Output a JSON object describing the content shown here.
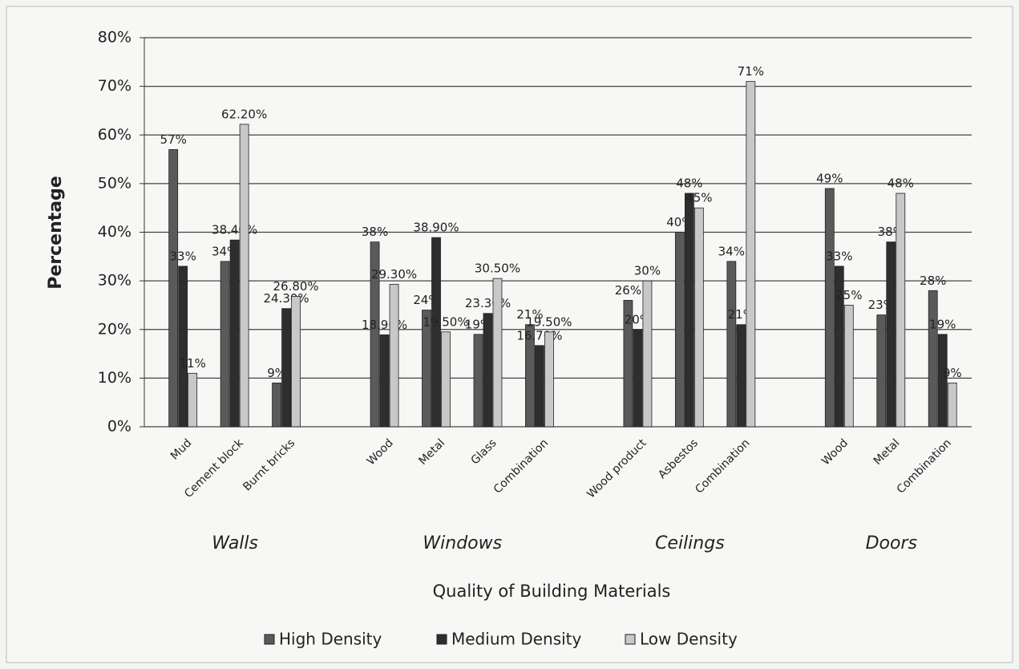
{
  "chart_data": {
    "type": "bar",
    "x_label": "Quality of Building Materials",
    "y_label": "Percentage",
    "categories": [
      "Mud",
      "Cement block",
      "Burnt bricks",
      "Wood",
      "Metal",
      "Glass",
      "Combination",
      "Wood product",
      "Asbestos",
      "Combination",
      "Wood",
      "Metal",
      "Combination"
    ],
    "category_groups": [
      "Walls",
      "Walls",
      "Walls",
      "Windows",
      "Windows",
      "Windows",
      "Windows",
      "Ceilings",
      "Ceilings",
      "Ceilings",
      "Doors",
      "Doors",
      "Doors"
    ],
    "series": [
      {
        "name": "High Density",
        "color": "#5a5a5a",
        "values": [
          57,
          34,
          9,
          38,
          24,
          19,
          21,
          26,
          40,
          34,
          49,
          23,
          28
        ],
        "value_labels": [
          "57%",
          "34%",
          "9%",
          "38%",
          "24%",
          "19%",
          "21%",
          "26%",
          "40%",
          "34%",
          "49%",
          "23%",
          "28%"
        ]
      },
      {
        "name": "Medium Density",
        "color": "#2e2e2e",
        "values": [
          33,
          38.4,
          24.3,
          18.9,
          38.9,
          23.3,
          16.7,
          20,
          48,
          21,
          33,
          38,
          19
        ],
        "value_labels": [
          "33%",
          "38.40%",
          "24.30%",
          "18.90%",
          "38.90%",
          "23.30%",
          "16.70%",
          "20%",
          "48%",
          "21%",
          "33%",
          "38%",
          "19%"
        ]
      },
      {
        "name": "Low Density",
        "color": "#c8c8c8",
        "values": [
          11,
          62.2,
          26.8,
          29.3,
          19.5,
          30.5,
          19.5,
          30,
          45,
          71,
          25,
          48,
          9
        ],
        "value_labels": [
          "11%",
          "62.20%",
          "26.80%",
          "29.30%",
          "19.50%",
          "30.50%",
          "19.50%",
          "30%",
          "45%",
          "71%",
          "25%",
          "48%",
          "9%"
        ]
      }
    ],
    "ylim": [
      0,
      80
    ],
    "yticks": [
      {
        "value": 0,
        "label": "0%"
      },
      {
        "value": 10,
        "label": "10%"
      },
      {
        "value": 20,
        "label": "20%"
      },
      {
        "value": 30,
        "label": "30%"
      },
      {
        "value": 40,
        "label": "40%"
      },
      {
        "value": 50,
        "label": "50%"
      },
      {
        "value": 60,
        "label": "60%"
      },
      {
        "value": 70,
        "label": "70%"
      },
      {
        "value": 80,
        "label": "80%"
      }
    ],
    "grid": true,
    "legend": "bottom"
  }
}
